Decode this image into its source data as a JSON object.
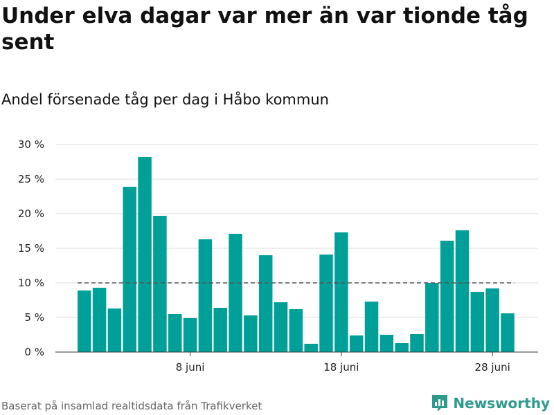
{
  "title": "Under elva dagar var mer än var tionde tåg sent",
  "subtitle": "Andel försenade tåg per dag i Håbo kommun",
  "source": "Baserat på insamlad realtidsdata från Trafikverket",
  "brand": {
    "name": "Newsworthy",
    "icon": "newsworthy-logo-icon"
  },
  "colors": {
    "bar": "#00a099",
    "reference_line": "#555555",
    "grid": "#dddddd",
    "brand": "#2e9a8c"
  },
  "chart_data": {
    "type": "bar",
    "x": [
      "2021-06-01",
      "2021-06-02",
      "2021-06-03",
      "2021-06-04",
      "2021-06-05",
      "2021-06-06",
      "2021-06-07",
      "2021-06-08",
      "2021-06-09",
      "2021-06-10",
      "2021-06-11",
      "2021-06-12",
      "2021-06-13",
      "2021-06-14",
      "2021-06-15",
      "2021-06-16",
      "2021-06-17",
      "2021-06-18",
      "2021-06-19",
      "2021-06-20",
      "2021-06-21",
      "2021-06-22",
      "2021-06-23",
      "2021-06-24",
      "2021-06-25",
      "2021-06-26",
      "2021-06-27",
      "2021-06-28",
      "2021-06-29"
    ],
    "values": [
      8.9,
      9.3,
      6.3,
      23.9,
      28.2,
      19.7,
      5.5,
      4.9,
      16.3,
      6.4,
      17.1,
      5.3,
      14.0,
      7.2,
      6.2,
      1.2,
      14.1,
      17.3,
      2.4,
      7.3,
      2.5,
      1.3,
      2.6,
      10.0,
      16.1,
      17.6,
      8.7,
      9.2,
      5.6
    ],
    "reference_line": 10,
    "ylim": [
      0,
      30
    ],
    "yticks": [
      0,
      5,
      10,
      15,
      20,
      25,
      30
    ],
    "ytick_labels": [
      "0 %",
      "5 %",
      "10 %",
      "15 %",
      "20 %",
      "25 %",
      "30 %"
    ],
    "xtick_labels": [
      {
        "x": "2021-06-08",
        "label": "8 juni"
      },
      {
        "x": "2021-06-18",
        "label": "18 juni"
      },
      {
        "x": "2021-06-28",
        "label": "28 juni"
      }
    ],
    "grid": true,
    "xlabel": "",
    "ylabel": ""
  }
}
